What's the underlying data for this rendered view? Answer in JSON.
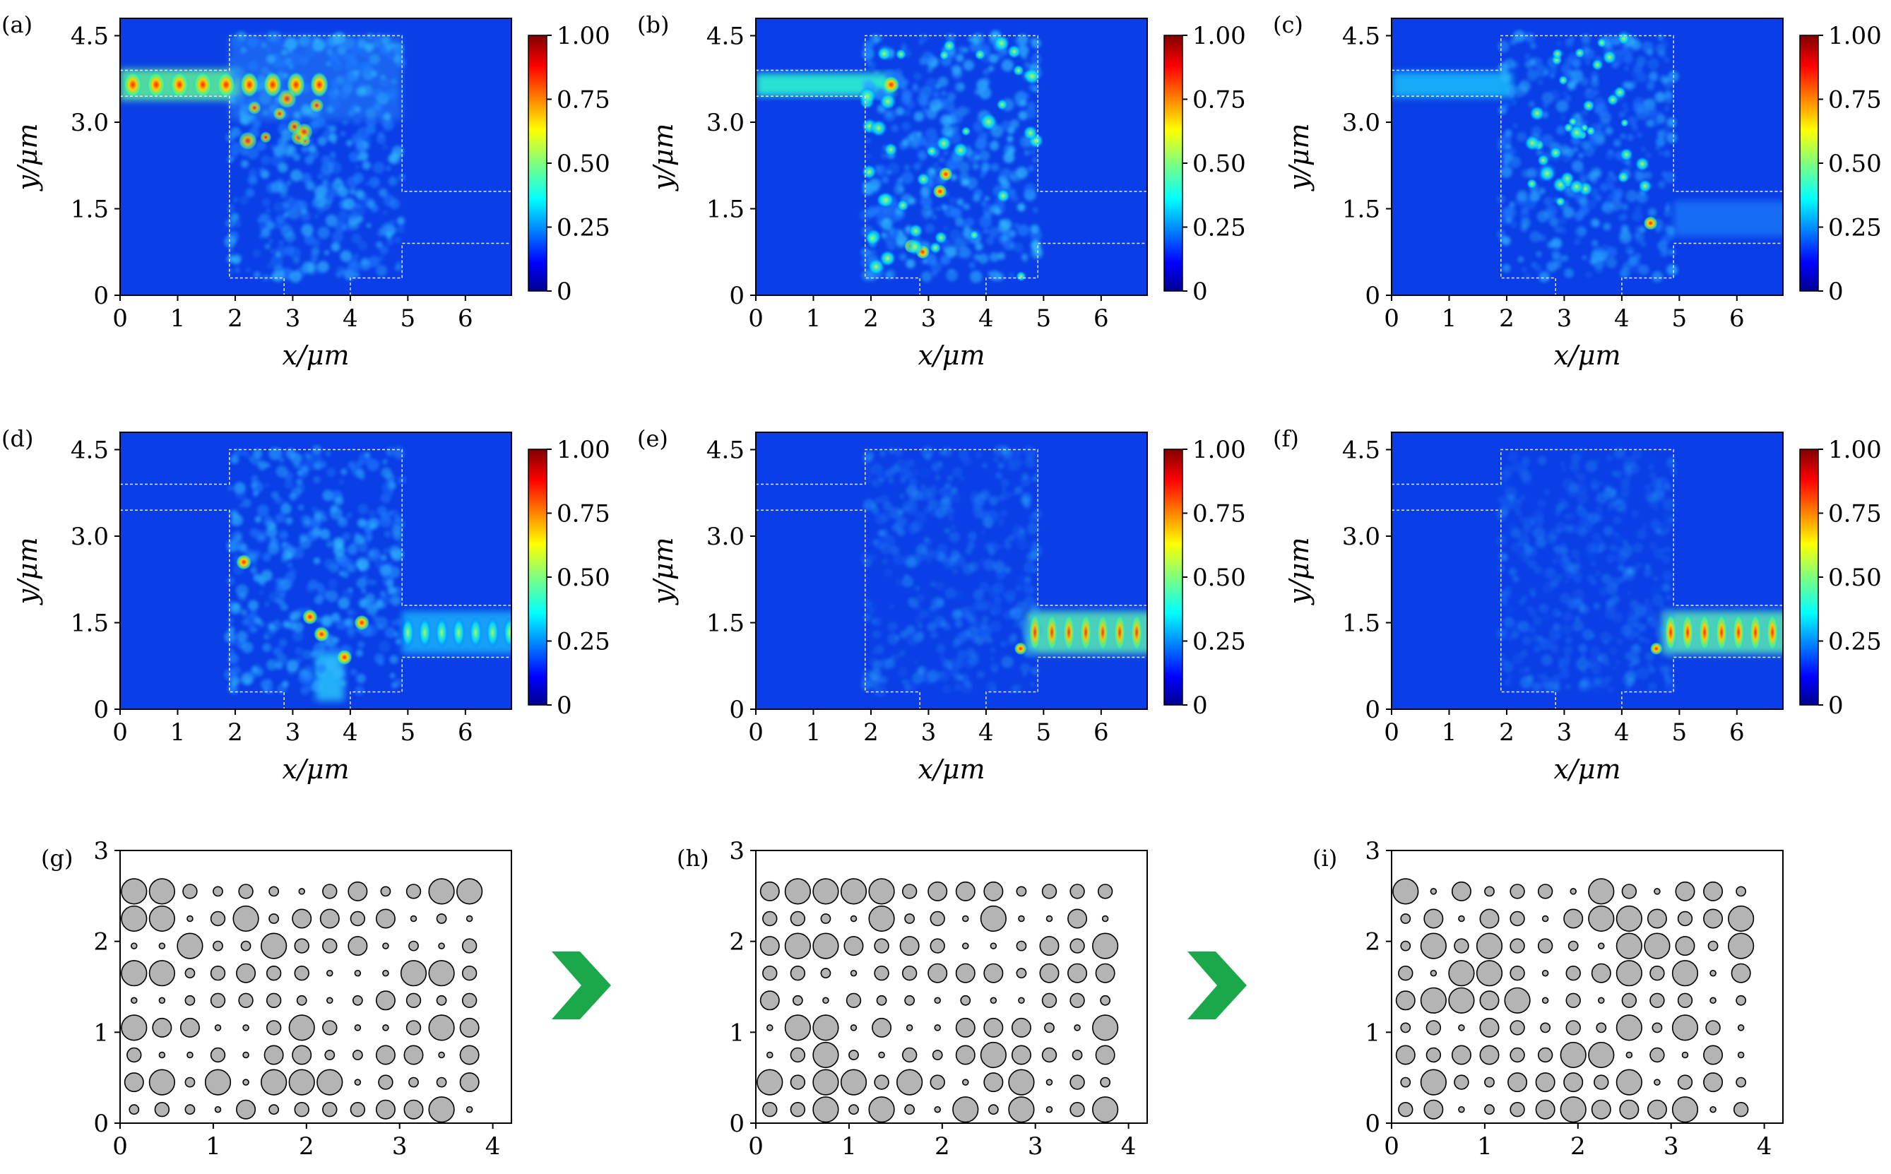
{
  "chart_data": {
    "type": "heatmap",
    "field_panels": [
      {
        "label": "(a)",
        "xlabel": "x/μm",
        "ylabel": "y/μm",
        "xticks": [
          "0",
          "1",
          "2",
          "3",
          "4",
          "5",
          "6"
        ],
        "yticks": [
          "0",
          "1.5",
          "3.0",
          "4.5"
        ],
        "xlim": [
          0,
          6.8
        ],
        "ylim": [
          0,
          4.8
        ],
        "colorbar_ticks": [
          "0",
          "0.25",
          "0.50",
          "0.75",
          "1.00"
        ],
        "output_port": "top-left input only",
        "peak_region": "input waveguide y≈3.65"
      },
      {
        "label": "(b)",
        "xlabel": "x/μm",
        "ylabel": "y/μm",
        "xticks": [
          "0",
          "1",
          "2",
          "3",
          "4",
          "5",
          "6"
        ],
        "yticks": [
          "0",
          "1.5",
          "3.0",
          "4.5"
        ],
        "xlim": [
          0,
          6.8
        ],
        "ylim": [
          0,
          4.8
        ],
        "colorbar_ticks": [
          "0",
          "0.25",
          "0.50",
          "0.75",
          "1.00"
        ],
        "output_port": "scattered in design region",
        "peak_region": "design region"
      },
      {
        "label": "(c)",
        "xlabel": "x/μm",
        "ylabel": "y/μm",
        "xticks": [
          "0",
          "1",
          "2",
          "3",
          "4",
          "5",
          "6"
        ],
        "yticks": [
          "0",
          "1.5",
          "3.0",
          "4.5"
        ],
        "xlim": [
          0,
          6.8
        ],
        "ylim": [
          0,
          4.8
        ],
        "colorbar_ticks": [
          "0",
          "0.25",
          "0.50",
          "0.75",
          "1.00"
        ],
        "output_port": "weak output y≈1.5",
        "peak_region": "design region"
      },
      {
        "label": "(d)",
        "xlabel": "x/μm",
        "ylabel": "y/μm",
        "xticks": [
          "0",
          "1",
          "2",
          "3",
          "4",
          "5",
          "6"
        ],
        "yticks": [
          "0",
          "1.5",
          "3.0",
          "4.5"
        ],
        "xlim": [
          0,
          6.8
        ],
        "ylim": [
          0,
          4.8
        ],
        "colorbar_ticks": [
          "0",
          "0.25",
          "0.50",
          "0.75",
          "1.00"
        ],
        "output_port": "output waveguide y≈1.3",
        "peak_region": "design region bottom"
      },
      {
        "label": "(e)",
        "xlabel": "x/μm",
        "ylabel": "y/μm",
        "xticks": [
          "0",
          "1",
          "2",
          "3",
          "4",
          "5",
          "6"
        ],
        "yticks": [
          "0",
          "1.5",
          "3.0",
          "4.5"
        ],
        "xlim": [
          0,
          6.8
        ],
        "ylim": [
          0,
          4.8
        ],
        "colorbar_ticks": [
          "0",
          "0.25",
          "0.50",
          "0.75",
          "1.00"
        ],
        "output_port": "output waveguide y≈1.3",
        "peak_region": "output waveguide"
      },
      {
        "label": "(f)",
        "xlabel": "x/μm",
        "ylabel": "y/μm",
        "xticks": [
          "0",
          "1",
          "2",
          "3",
          "4",
          "5",
          "6"
        ],
        "yticks": [
          "0",
          "1.5",
          "3.0",
          "4.5"
        ],
        "xlim": [
          0,
          6.8
        ],
        "ylim": [
          0,
          4.8
        ],
        "colorbar_ticks": [
          "0",
          "0.25",
          "0.50",
          "0.75",
          "1.00"
        ],
        "output_port": "output waveguide y≈1.3",
        "peak_region": "output waveguide"
      }
    ],
    "structure_panels": [
      {
        "label": "(g)",
        "xticks": [
          "0",
          "1",
          "2",
          "3",
          "4"
        ],
        "yticks": [
          "0",
          "1",
          "2",
          "3"
        ],
        "xlim": [
          0,
          4.2
        ],
        "ylim": [
          0,
          3
        ],
        "grid": "13 columns x 9 rows of circular holes, varying radii"
      },
      {
        "label": "(h)",
        "xticks": [
          "0",
          "1",
          "2",
          "3",
          "4"
        ],
        "yticks": [
          "0",
          "1",
          "2",
          "3"
        ],
        "xlim": [
          0,
          4.2
        ],
        "ylim": [
          0,
          3
        ],
        "grid": "13 columns x 9 rows of circular holes, varying radii"
      },
      {
        "label": "(i)",
        "xticks": [
          "0",
          "1",
          "2",
          "3",
          "4"
        ],
        "yticks": [
          "0",
          "1",
          "2",
          "3"
        ],
        "xlim": [
          0,
          4.2
        ],
        "ylim": [
          0,
          3
        ],
        "grid": "13 columns x 9 rows of circular holes, varying radii"
      }
    ],
    "colorscale": "jet",
    "arrow_color": "#1aa84a"
  }
}
